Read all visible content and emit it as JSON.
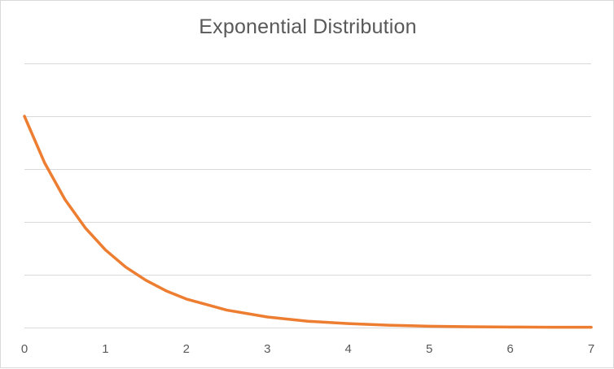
{
  "chart_data": {
    "type": "line",
    "title": "Exponential Distribution",
    "xlabel": "",
    "ylabel": "",
    "x_ticks": [
      "0",
      "1",
      "2",
      "3",
      "4",
      "5",
      "6",
      "7"
    ],
    "xlim": [
      0,
      7
    ],
    "ylim": [
      0,
      1
    ],
    "gridlines": [
      0,
      0.2,
      0.4,
      0.6,
      0.8,
      1.0
    ],
    "grid": true,
    "legend": "none",
    "series": [
      {
        "name": "Exponential Distribution",
        "color": "#ed7d31",
        "x": [
          0,
          0.25,
          0.5,
          0.75,
          1,
          1.25,
          1.5,
          1.75,
          2,
          2.5,
          3,
          3.5,
          4,
          4.5,
          5,
          5.5,
          6,
          6.5,
          7
        ],
        "values": [
          0.8,
          0.623,
          0.485,
          0.378,
          0.294,
          0.229,
          0.179,
          0.139,
          0.108,
          0.066,
          0.04,
          0.024,
          0.015,
          0.009,
          0.005,
          0.003,
          0.002,
          0.001,
          0.001
        ]
      }
    ]
  }
}
